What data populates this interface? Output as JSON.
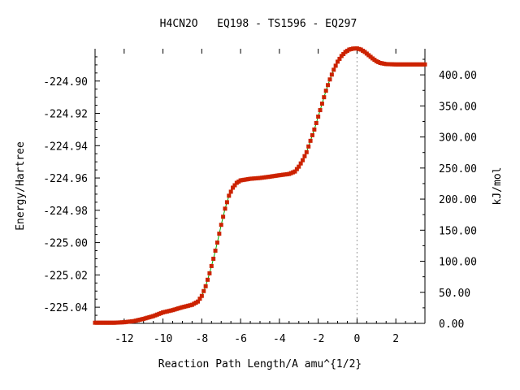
{
  "chart_data": {
    "type": "line",
    "title": "H4CN2O   EQ198 - TS1596 - EQ297",
    "xlabel": "Reaction Path Length/A amu^{1/2}",
    "ylabel": "Energy/Hartree",
    "y2label": "kJ/mol",
    "xlim": [
      -13.5,
      3.5
    ],
    "ylim": [
      -225.05,
      -224.88
    ],
    "y2lim": [
      0,
      442
    ],
    "x_ticks": [
      -12,
      -10,
      -8,
      -6,
      -4,
      -2,
      0,
      2
    ],
    "x_tick_labels": [
      "-12",
      "-10",
      "-8",
      "-6",
      "-4",
      "-2",
      "0",
      "2"
    ],
    "y_ticks": [
      -224.9,
      -224.92,
      -224.94,
      -224.96,
      -224.98,
      -225.0,
      -225.02,
      -225.04
    ],
    "y_tick_labels": [
      "-224.90",
      "-224.92",
      "-224.94",
      "-224.96",
      "-224.98",
      "-225.00",
      "-225.02",
      "-225.04"
    ],
    "y2_ticks": [
      400,
      350,
      300,
      250,
      200,
      150,
      100,
      50,
      0
    ],
    "y2_tick_labels": [
      "400.00",
      "350.00",
      "300.00",
      "250.00",
      "200.00",
      "150.00",
      "100.00",
      "50.00",
      "0.00"
    ],
    "ts_marker_x": 0,
    "grid": false,
    "series": [
      {
        "line_color": "#00aa00",
        "marker_color": "#cc2200",
        "points": [
          [
            -13.5,
            -225.0496
          ],
          [
            -12.5,
            -225.0496
          ],
          [
            -12.0,
            -225.0493
          ],
          [
            -11.5,
            -225.0486
          ],
          [
            -11.0,
            -225.0472
          ],
          [
            -10.5,
            -225.0455
          ],
          [
            -10.0,
            -225.0432
          ],
          [
            -9.5,
            -225.0418
          ],
          [
            -9.0,
            -225.04
          ],
          [
            -8.5,
            -225.0385
          ],
          [
            -8.2,
            -225.0365
          ],
          [
            -8.0,
            -225.033
          ],
          [
            -7.8,
            -225.027
          ],
          [
            -7.6,
            -225.019
          ],
          [
            -7.4,
            -225.01
          ],
          [
            -7.2,
            -225.0
          ],
          [
            -7.0,
            -224.989
          ],
          [
            -6.8,
            -224.979
          ],
          [
            -6.6,
            -224.971
          ],
          [
            -6.4,
            -224.966
          ],
          [
            -6.2,
            -224.963
          ],
          [
            -6.0,
            -224.9615
          ],
          [
            -5.5,
            -224.9605
          ],
          [
            -5.0,
            -224.96
          ],
          [
            -4.5,
            -224.9592
          ],
          [
            -4.0,
            -224.9583
          ],
          [
            -3.5,
            -224.9575
          ],
          [
            -3.2,
            -224.956
          ],
          [
            -3.0,
            -224.953
          ],
          [
            -2.8,
            -224.949
          ],
          [
            -2.6,
            -224.944
          ],
          [
            -2.4,
            -224.937
          ],
          [
            -2.2,
            -224.93
          ],
          [
            -2.0,
            -224.922
          ],
          [
            -1.8,
            -224.914
          ],
          [
            -1.6,
            -224.906
          ],
          [
            -1.4,
            -224.899
          ],
          [
            -1.2,
            -224.893
          ],
          [
            -1.0,
            -224.888
          ],
          [
            -0.8,
            -224.8845
          ],
          [
            -0.6,
            -224.882
          ],
          [
            -0.4,
            -224.8805
          ],
          [
            -0.2,
            -224.8799
          ],
          [
            0.0,
            -224.8798
          ],
          [
            0.2,
            -224.8805
          ],
          [
            0.4,
            -224.882
          ],
          [
            0.6,
            -224.884
          ],
          [
            0.8,
            -224.886
          ],
          [
            1.0,
            -224.8877
          ],
          [
            1.2,
            -224.8888
          ],
          [
            1.5,
            -224.8895
          ],
          [
            2.0,
            -224.8897
          ],
          [
            2.5,
            -224.8897
          ],
          [
            3.0,
            -224.8897
          ],
          [
            3.5,
            -224.8897
          ]
        ]
      }
    ]
  }
}
